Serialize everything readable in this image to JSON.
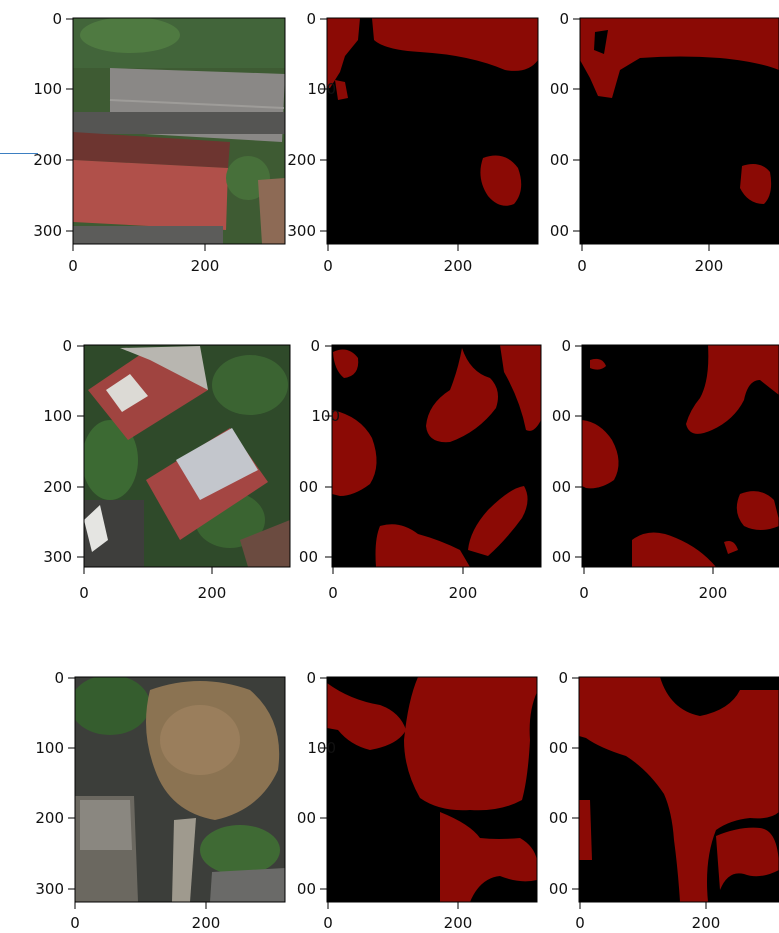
{
  "colors": {
    "mask_fg": "#8b0a05",
    "mask_bg": "#000000",
    "accent": "#3d7fc1",
    "roof_red": "#a3433c",
    "roof_grey": "#8c8a87",
    "tree_green": "#3f6b34",
    "tree_brown": "#8a7152",
    "ground": "#4a4a48"
  },
  "axes": {
    "y_ticks": [
      "0",
      "100",
      "200",
      "300"
    ],
    "x_ticks": [
      "0",
      "200"
    ],
    "y_ticks_cropped": [
      "0",
      "00",
      "00",
      "00"
    ]
  },
  "rows": [
    {
      "name": "row-1",
      "panels": [
        "aerial-image",
        "ground-truth-mask",
        "predicted-mask"
      ]
    },
    {
      "name": "row-2",
      "panels": [
        "aerial-image",
        "ground-truth-mask",
        "predicted-mask"
      ]
    },
    {
      "name": "row-3",
      "panels": [
        "aerial-image",
        "ground-truth-mask",
        "predicted-mask"
      ]
    }
  ]
}
